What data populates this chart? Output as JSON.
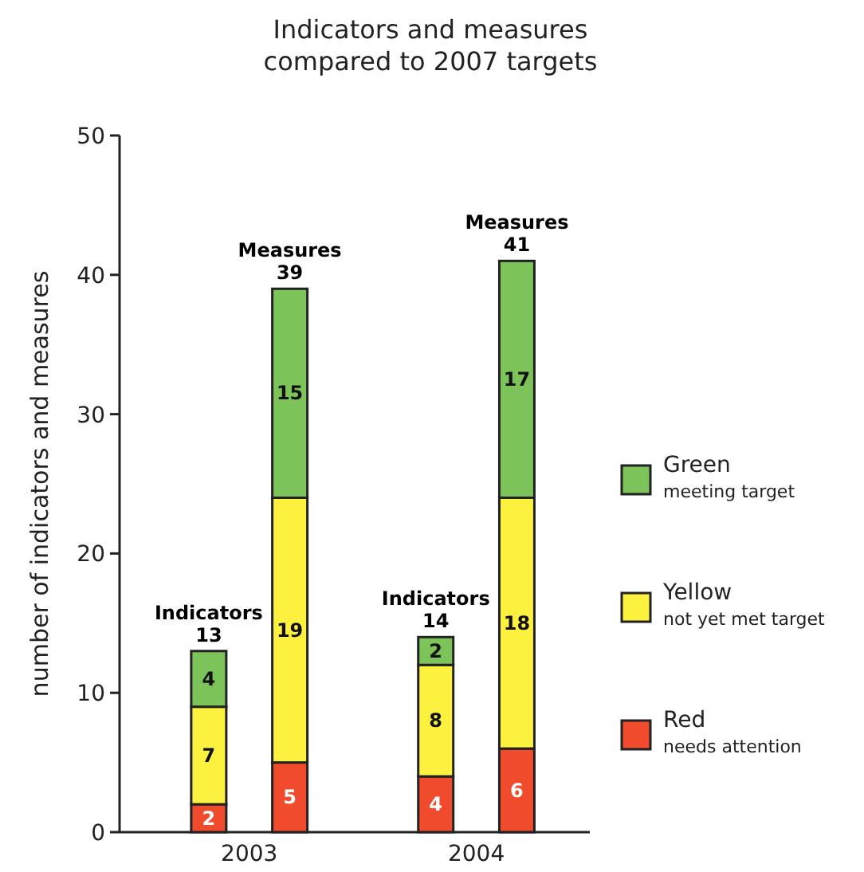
{
  "chart_data": {
    "type": "bar",
    "title": "Indicators and measures\ncompared to 2007 targets",
    "ylabel": "number of indicators and measures",
    "categories": [
      "Indicators",
      "Measures",
      "Indicators",
      "Measures"
    ],
    "series": [
      {
        "name": "Red\nneeds attention",
        "color": "#f04b2d",
        "values": [
          2,
          5,
          4,
          6
        ]
      },
      {
        "name": "Yellow\nnot yet met target",
        "color": "#fdf13f",
        "values": [
          7,
          19,
          8,
          18
        ]
      },
      {
        "name": "Green\nmeeting target",
        "color": "#7cc35a",
        "values": [
          4,
          15,
          2,
          17
        ]
      }
    ],
    "stacked": true,
    "totals": [
      "13",
      "39",
      "14",
      "41"
    ],
    "data_labels": true,
    "ylim": [
      0,
      50
    ],
    "yticks": [
      0,
      10,
      20,
      30,
      40,
      50
    ],
    "annotations": [
      "2003",
      "2004"
    ],
    "legend": "right"
  }
}
